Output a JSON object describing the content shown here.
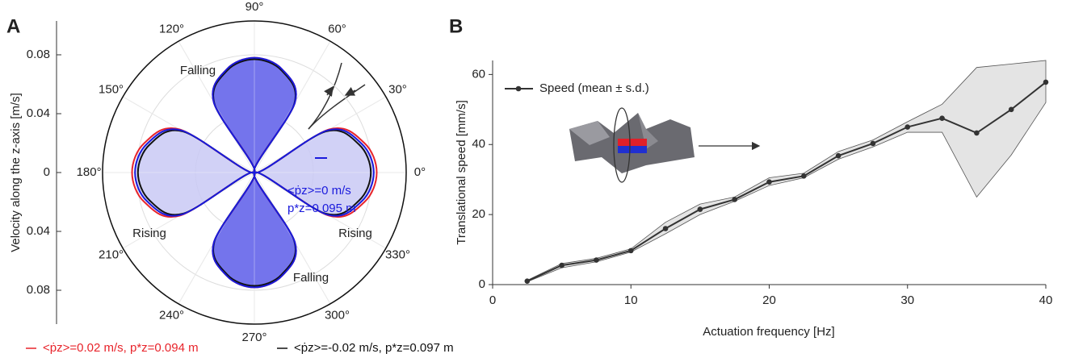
{
  "chart_data": [
    {
      "type": "polar",
      "panel_label": "A",
      "ylabel": "Velocity along the z-axis [m/s]",
      "ylim": [
        -0.103,
        0.103
      ],
      "yticks": [
        0.08,
        0.04,
        0,
        {
          "value": -0.04,
          "label": "0.04"
        },
        {
          "value": -0.08,
          "label": "0.08"
        }
      ],
      "thetaticks": [
        {
          "value": 0,
          "label": "0°"
        },
        {
          "value": 30,
          "label": "30°"
        },
        {
          "value": 60,
          "label": "60°"
        },
        {
          "value": 90,
          "label": "90°"
        },
        {
          "value": 120,
          "label": "120°"
        },
        {
          "value": 150,
          "label": "150°"
        },
        {
          "value": 180,
          "label": "180°"
        },
        {
          "value": 210,
          "label": "210°"
        },
        {
          "value": 240,
          "label": "240°"
        },
        {
          "value": 270,
          "label": "270°"
        },
        {
          "value": 300,
          "label": "300°"
        },
        {
          "value": 330,
          "label": "330°"
        }
      ],
      "theta": [
        0,
        15,
        30,
        45,
        60,
        75,
        90,
        105,
        120,
        135,
        150,
        165,
        180,
        195,
        210,
        225,
        240,
        255,
        270,
        285,
        300,
        315,
        330,
        345
      ],
      "series": [
        {
          "name": "<ṗz>=0.02 m/s, p*z=0.094 m",
          "color": "#e8242b",
          "values": [
            0.083,
            0.0773,
            0.0587,
            0,
            0.0551,
            0.0726,
            0.078,
            0.0726,
            0.0551,
            0,
            0.0587,
            0.0773,
            0.083,
            0.0773,
            0.0587,
            0,
            0.0551,
            0.0726,
            0.078,
            0.0726,
            0.0551,
            0,
            0.0587,
            0.0773
          ]
        },
        {
          "label_lines": [
            "<ṗz>=0 m/s",
            "p*z=0.095 m"
          ],
          "color": "#1a1adc",
          "values": [
            0.081,
            0.0754,
            0.0573,
            0,
            0.0551,
            0.0726,
            0.078,
            0.0726,
            0.0551,
            0,
            0.0573,
            0.0754,
            0.081,
            0.0754,
            0.0573,
            0,
            0.0551,
            0.0726,
            0.078,
            0.0726,
            0.0551,
            0,
            0.0573,
            0.0754
          ]
        },
        {
          "name": "<ṗz>=-0.02 m/s, p*z=0.097 m",
          "color": "#111111",
          "values": [
            0.079,
            0.0735,
            0.0559,
            0,
            0.0544,
            0.0717,
            0.077,
            0.0717,
            0.0544,
            0,
            0.0559,
            0.0735,
            0.079,
            0.0735,
            0.0559,
            0,
            0.0544,
            0.0717,
            0.077,
            0.0717,
            0.0544,
            0,
            0.0559,
            0.0735
          ]
        }
      ],
      "annotations": [
        "Falling",
        "Rising",
        "Rising",
        "Falling"
      ]
    },
    {
      "type": "line",
      "panel_label": "B",
      "xlabel": "Actuation frequency [Hz]",
      "ylabel": "Translational speed [mm/s]",
      "xlim": [
        0,
        40
      ],
      "ylim": [
        0,
        64
      ],
      "xticks": [
        0,
        10,
        20,
        30,
        40
      ],
      "yticks": [
        0,
        20,
        40,
        60
      ],
      "x": [
        2.5,
        5,
        7.5,
        10,
        12.5,
        15,
        17.5,
        20,
        22.5,
        25,
        27.5,
        30,
        32.5,
        35,
        37.5,
        40
      ],
      "series": [
        {
          "name": "Speed (mean ± s.d.)",
          "color": "#333333",
          "values": [
            1,
            5.5,
            7,
            9.7,
            16,
            21.5,
            24.3,
            29.3,
            31,
            36.8,
            40.3,
            45,
            47.5,
            43.3,
            50,
            57.8
          ],
          "upper": [
            1.2,
            6,
            7.5,
            10.2,
            17.8,
            23,
            25,
            30.5,
            31.8,
            38,
            41.3,
            46.5,
            51.5,
            62,
            63,
            64
          ],
          "lower": [
            0.8,
            4.8,
            6.5,
            9.3,
            14.5,
            20,
            23.8,
            28.3,
            30.5,
            35.8,
            39.3,
            43.5,
            43.5,
            25,
            37,
            52
          ]
        }
      ]
    }
  ]
}
